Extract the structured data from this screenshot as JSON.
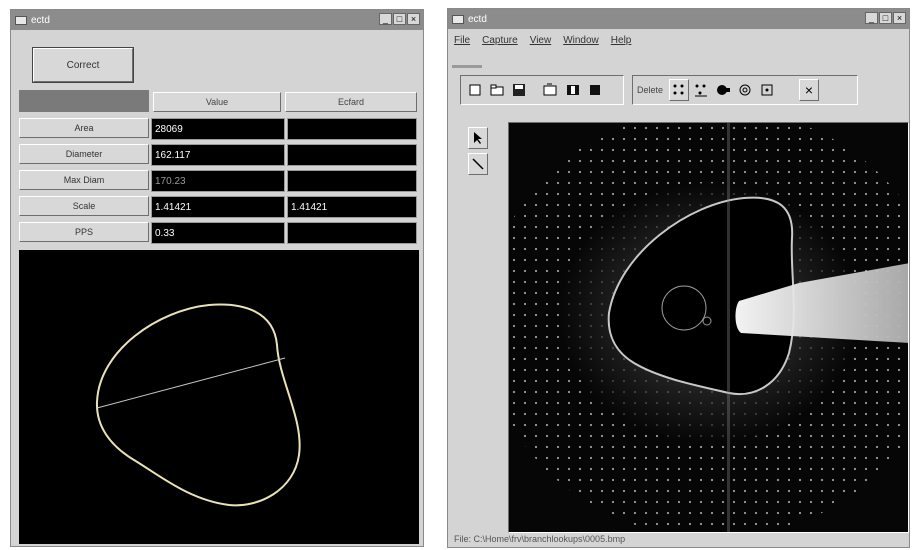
{
  "left_window": {
    "title": "ectd",
    "window_buttons": [
      "_",
      "□",
      "×"
    ],
    "correct_button": "Correct",
    "table": {
      "headers": [
        "",
        "Value",
        "Ecfard"
      ],
      "rows": [
        {
          "label": "Area",
          "value": "28069",
          "extra": ""
        },
        {
          "label": "Diameter",
          "value": "162.117",
          "extra": ""
        },
        {
          "label": "Max Diam",
          "value": "170.23",
          "extra": ""
        },
        {
          "label": "Scale",
          "value": "1.41421",
          "extra": "1.41421"
        },
        {
          "label": "PPS",
          "value": "0.33",
          "extra": ""
        }
      ]
    }
  },
  "right_window": {
    "title": "ectd",
    "window_buttons": [
      "_",
      "□",
      "×"
    ],
    "menu": [
      "File",
      "Capture",
      "View",
      "Window",
      "Help"
    ],
    "toolbar": {
      "delete_label": "Delete",
      "buttons": [
        "new",
        "open",
        "save",
        "capture",
        "film",
        "stop"
      ],
      "mode_buttons": [
        "spot-tool",
        "multi-spot-tool",
        "beamstop-tool",
        "ring-tool",
        "box-tool"
      ],
      "close_button": "×"
    },
    "status_text": "File: C:\\Home\\frv\\branchlookups\\0005.bmp"
  },
  "colors": {
    "title_bar": "#8c8c8c",
    "window_face": "#d4d4d4",
    "canvas": "#000000"
  }
}
